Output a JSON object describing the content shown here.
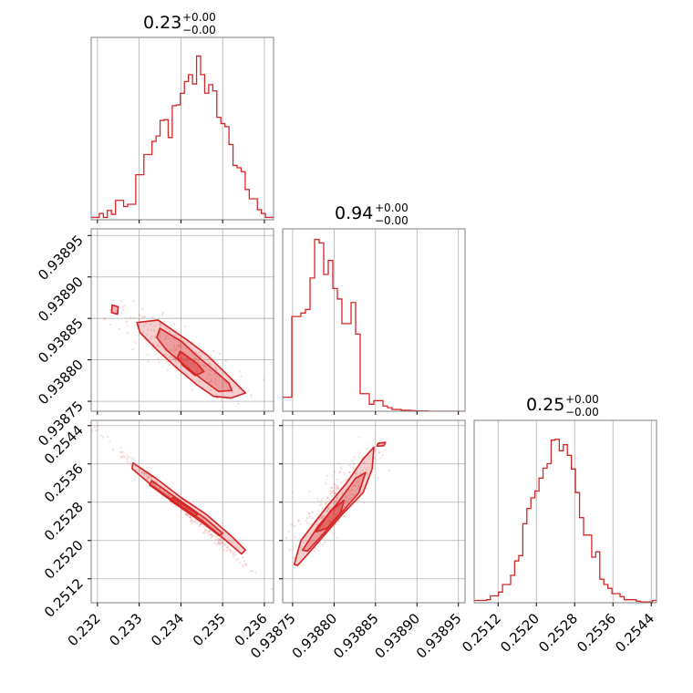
{
  "figure_type": "corner plot",
  "colors": {
    "series": "#d62728",
    "fill": "#d62728",
    "grid": "#b0b0b0",
    "frame": "#808080"
  },
  "chart_data": [
    {
      "type": "histogram",
      "panel": "p0",
      "title": {
        "value": "0.23",
        "upper": "+0.00",
        "lower": "−0.00"
      },
      "grid": true,
      "xlim": [
        0.23185,
        0.23622
      ],
      "xticks": [
        0.232,
        0.233,
        0.234,
        0.235,
        0.236
      ],
      "xtick_labels": [
        "0.232",
        "0.233",
        "0.234",
        "0.235",
        "0.236"
      ],
      "x_tick_labels_shown": false,
      "ylim": [
        0,
        23.5
      ],
      "bins": 45,
      "counts": [
        0.3,
        0.3,
        0.8,
        0.3,
        1.2,
        0.7,
        2.5,
        2.5,
        1.7,
        2.0,
        2.0,
        5.8,
        5.8,
        8.4,
        8.4,
        10.1,
        10.8,
        12.8,
        12.9,
        10.6,
        14.7,
        14.8,
        16.3,
        17.8,
        18.7,
        17.5,
        21.1,
        18.7,
        16.3,
        17.4,
        16.6,
        13.2,
        12.4,
        12.0,
        9.7,
        7.0,
        6.7,
        6.2,
        3.9,
        2.7,
        2.7,
        1.3,
        0.8,
        0.3,
        0.3
      ]
    },
    {
      "type": "histogram",
      "panel": "p1",
      "title": {
        "value": "0.94",
        "upper": "+0.00",
        "lower": "−0.00"
      },
      "grid": true,
      "xlim": [
        0.938738,
        0.938958
      ],
      "xticks": [
        0.93875,
        0.9388,
        0.93885,
        0.9389,
        0.93895
      ],
      "xtick_labels": [
        "0.93875",
        "0.93880",
        "0.93885",
        "0.93890",
        "0.93895"
      ],
      "x_tick_labels_shown": false,
      "ylim": [
        0,
        52
      ],
      "bins": 40,
      "counts": [
        4,
        4,
        27,
        27,
        28,
        29,
        38,
        49,
        48,
        39,
        43,
        35,
        32,
        25,
        25,
        31,
        22,
        5,
        5,
        2,
        3,
        3,
        1.5,
        1,
        0.5,
        0.5,
        0.3,
        0.3,
        0.2,
        0.1,
        0.1,
        0.1,
        0,
        0,
        0,
        0,
        0,
        0,
        0,
        0
      ]
    },
    {
      "type": "histogram",
      "panel": "p2",
      "title": {
        "value": "0.25",
        "upper": "+0.00",
        "lower": "−0.00"
      },
      "grid": true,
      "xlim": [
        0.2507,
        0.25451
      ],
      "xticks": [
        0.2512,
        0.252,
        0.2528,
        0.2536,
        0.2544
      ],
      "xtick_labels": [
        "0.2512",
        "0.2520",
        "0.2528",
        "0.2536",
        "0.2544"
      ],
      "ylim": [
        0,
        24
      ],
      "bins": 45,
      "counts": [
        0.3,
        0.3,
        0.3,
        0.4,
        0.9,
        0.9,
        1.4,
        2.4,
        2.4,
        3.6,
        5.5,
        6.2,
        10.4,
        12.4,
        13.8,
        14.7,
        16.4,
        17.7,
        18.3,
        21.4,
        21.5,
        20.0,
        20.8,
        19.4,
        17.6,
        14.5,
        11.2,
        8.9,
        8.9,
        6.0,
        6.7,
        3.1,
        2.4,
        1.9,
        1.2,
        1.2,
        0.8,
        0.4,
        0.4,
        0.4,
        0.2,
        0.1,
        0.1,
        0.1,
        0.3
      ]
    },
    {
      "type": "scatter+contour",
      "panel": "p10",
      "grid": true,
      "xlim": [
        0.23185,
        0.23622
      ],
      "ylim": [
        0.938738,
        0.938958
      ],
      "xticks": [
        0.232,
        0.233,
        0.234,
        0.235,
        0.236
      ],
      "xtick_labels": [
        "0.232",
        "0.233",
        "0.234",
        "0.235",
        "0.236"
      ],
      "x_tick_labels_shown": false,
      "yticks": [
        0.93875,
        0.9388,
        0.93885,
        0.9389,
        0.93895
      ],
      "ytick_labels": [
        "0.93875",
        "0.93880",
        "0.93885",
        "0.93890",
        "0.93895"
      ],
      "trend": {
        "x": [
          0.2325,
          0.2355
        ],
        "y": [
          0.938858,
          0.938757
        ]
      },
      "contour_lines": [
        {
          "level": "outer",
          "points": [
            [
              0.23295,
              0.938845
            ],
            [
              0.23345,
              0.938848
            ],
            [
              0.23412,
              0.938825
            ],
            [
              0.23462,
              0.938806
            ],
            [
              0.23505,
              0.938785
            ],
            [
              0.23545,
              0.938765
            ],
            [
              0.23555,
              0.93876
            ],
            [
              0.2352,
              0.938754
            ],
            [
              0.23478,
              0.938756
            ],
            [
              0.23438,
              0.93877
            ],
            [
              0.23395,
              0.938788
            ],
            [
              0.23345,
              0.938811
            ],
            [
              0.23302,
              0.938833
            ]
          ]
        },
        {
          "level": "middle",
          "points": [
            [
              0.2335,
              0.938838
            ],
            [
              0.23402,
              0.938822
            ],
            [
              0.2344,
              0.938804
            ],
            [
              0.23478,
              0.938788
            ],
            [
              0.23515,
              0.938772
            ],
            [
              0.23522,
              0.938763
            ],
            [
              0.2349,
              0.938762
            ],
            [
              0.23452,
              0.938776
            ],
            [
              0.23412,
              0.938792
            ],
            [
              0.23365,
              0.938812
            ],
            [
              0.23342,
              0.938827
            ]
          ]
        },
        {
          "level": "inner",
          "points": [
            [
              0.23398,
              0.93881
            ],
            [
              0.23438,
              0.938796
            ],
            [
              0.23455,
              0.938786
            ],
            [
              0.23435,
              0.938781
            ],
            [
              0.23405,
              0.938793
            ],
            [
              0.23392,
              0.938803
            ]
          ]
        },
        {
          "level": "blob",
          "points": [
            [
              0.23235,
              0.938866
            ],
            [
              0.2325,
              0.938864
            ],
            [
              0.23248,
              0.938855
            ],
            [
              0.23234,
              0.938857
            ]
          ]
        }
      ]
    },
    {
      "type": "scatter+contour",
      "panel": "p20",
      "grid": true,
      "xlim": [
        0.23185,
        0.23622
      ],
      "ylim": [
        0.2507,
        0.25451
      ],
      "xticks": [
        0.232,
        0.233,
        0.234,
        0.235,
        0.236
      ],
      "xtick_labels": [
        "0.232",
        "0.233",
        "0.234",
        "0.235",
        "0.236"
      ],
      "yticks": [
        0.2512,
        0.252,
        0.2528,
        0.2536,
        0.2544
      ],
      "ytick_labels": [
        "0.2512",
        "0.2520",
        "0.2528",
        "0.2536",
        "0.2544"
      ],
      "trend": {
        "x": [
          0.2321,
          0.236
        ],
        "y": [
          0.25418,
          0.25116
        ]
      },
      "contour_lines": [
        {
          "level": "outer",
          "points": [
            [
              0.23285,
              0.25362
            ],
            [
              0.2334,
              0.2533
            ],
            [
              0.234,
              0.2529
            ],
            [
              0.2346,
              0.25255
            ],
            [
              0.2352,
              0.2521
            ],
            [
              0.23555,
              0.2518
            ],
            [
              0.23545,
              0.25172
            ],
            [
              0.23505,
              0.25202
            ],
            [
              0.2345,
              0.25242
            ],
            [
              0.2339,
              0.25278
            ],
            [
              0.2333,
              0.25315
            ],
            [
              0.23283,
              0.2535
            ]
          ]
        },
        {
          "level": "middle",
          "points": [
            [
              0.2333,
              0.25325
            ],
            [
              0.234,
              0.25282
            ],
            [
              0.2346,
              0.25245
            ],
            [
              0.235,
              0.25215
            ],
            [
              0.23492,
              0.2521
            ],
            [
              0.2345,
              0.25238
            ],
            [
              0.23392,
              0.25274
            ],
            [
              0.23325,
              0.25316
            ]
          ]
        },
        {
          "level": "inner",
          "points": [
            [
              0.2338,
              0.2529
            ],
            [
              0.2344,
              0.25255
            ],
            [
              0.23432,
              0.2525
            ],
            [
              0.23374,
              0.25284
            ]
          ]
        }
      ]
    },
    {
      "type": "scatter+contour",
      "panel": "p21",
      "grid": true,
      "xlim": [
        0.938738,
        0.938958
      ],
      "ylim": [
        0.2507,
        0.25451
      ],
      "xticks": [
        0.93875,
        0.9388,
        0.93885,
        0.9389,
        0.93895
      ],
      "xtick_labels": [
        "0.93875",
        "0.93880",
        "0.93885",
        "0.93890",
        "0.93895"
      ],
      "yticks": [
        0.2512,
        0.252,
        0.2528,
        0.2536,
        0.2544
      ],
      "ytick_labels": [
        "0.2512",
        "0.2520",
        "0.2528",
        "0.2536",
        "0.2544"
      ],
      "trend": {
        "x": [
          0.938755,
          0.938845
        ],
        "y": [
          0.25175,
          0.2538
        ]
      },
      "contour_lines": [
        {
          "level": "outer",
          "points": [
            [
              0.938752,
              0.2515
            ],
            [
              0.93876,
              0.252
            ],
            [
              0.93879,
              0.25268
            ],
            [
              0.938815,
              0.2532
            ],
            [
              0.938835,
              0.2537
            ],
            [
              0.938848,
              0.25395
            ],
            [
              0.938846,
              0.2535
            ],
            [
              0.938835,
              0.253
            ],
            [
              0.93881,
              0.25255
            ],
            [
              0.93879,
              0.25215
            ],
            [
              0.93877,
              0.25175
            ],
            [
              0.938756,
              0.25148
            ]
          ]
        },
        {
          "level": "middle",
          "points": [
            [
              0.938762,
              0.2518
            ],
            [
              0.93878,
              0.25228
            ],
            [
              0.938805,
              0.2528
            ],
            [
              0.938826,
              0.2533
            ],
            [
              0.938838,
              0.25342
            ],
            [
              0.93883,
              0.253
            ],
            [
              0.938806,
              0.25252
            ],
            [
              0.938784,
              0.25208
            ],
            [
              0.938768,
              0.25178
            ]
          ]
        },
        {
          "level": "inner",
          "points": [
            [
              0.938778,
              0.25218
            ],
            [
              0.938796,
              0.25262
            ],
            [
              0.938812,
              0.25284
            ],
            [
              0.938808,
              0.25258
            ],
            [
              0.938792,
              0.25226
            ]
          ]
        },
        {
          "level": "blob",
          "points": [
            [
              0.938853,
              0.25403
            ],
            [
              0.938862,
              0.25405
            ],
            [
              0.93886,
              0.25398
            ],
            [
              0.938852,
              0.25397
            ]
          ]
        }
      ]
    }
  ]
}
